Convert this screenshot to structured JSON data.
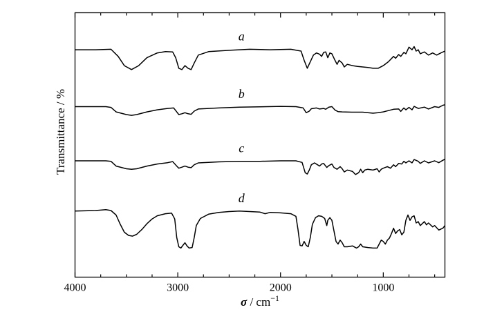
{
  "chart_data": {
    "type": "line",
    "xlabel_symbol": "σ",
    "xlabel_unit": " / cm",
    "xlabel_sup": "−1",
    "ylabel": "Transmittance / %",
    "xlim": [
      4000,
      400
    ],
    "x_reversed": true,
    "ylim": [
      0,
      1
    ],
    "y_ticks_labeled": false,
    "grid": false,
    "x_ticks": [
      4000,
      3000,
      2000,
      1000
    ],
    "x_tick_labels": [
      "4000",
      "3000",
      "2000",
      "1000"
    ],
    "series": [
      {
        "name": "a",
        "points": [
          [
            4000,
            0.86
          ],
          [
            3800,
            0.86
          ],
          [
            3650,
            0.862
          ],
          [
            3580,
            0.835
          ],
          [
            3520,
            0.8
          ],
          [
            3450,
            0.785
          ],
          [
            3380,
            0.8
          ],
          [
            3300,
            0.83
          ],
          [
            3200,
            0.848
          ],
          [
            3120,
            0.853
          ],
          [
            3050,
            0.852
          ],
          [
            3020,
            0.83
          ],
          [
            2990,
            0.79
          ],
          [
            2960,
            0.785
          ],
          [
            2930,
            0.8
          ],
          [
            2900,
            0.79
          ],
          [
            2870,
            0.785
          ],
          [
            2840,
            0.81
          ],
          [
            2800,
            0.84
          ],
          [
            2700,
            0.853
          ],
          [
            2500,
            0.858
          ],
          [
            2300,
            0.862
          ],
          [
            2100,
            0.86
          ],
          [
            1900,
            0.862
          ],
          [
            1800,
            0.855
          ],
          [
            1770,
            0.82
          ],
          [
            1740,
            0.79
          ],
          [
            1710,
            0.815
          ],
          [
            1680,
            0.84
          ],
          [
            1650,
            0.848
          ],
          [
            1620,
            0.843
          ],
          [
            1600,
            0.835
          ],
          [
            1580,
            0.85
          ],
          [
            1560,
            0.852
          ],
          [
            1540,
            0.83
          ],
          [
            1520,
            0.848
          ],
          [
            1500,
            0.845
          ],
          [
            1470,
            0.82
          ],
          [
            1450,
            0.805
          ],
          [
            1430,
            0.82
          ],
          [
            1400,
            0.81
          ],
          [
            1380,
            0.795
          ],
          [
            1350,
            0.805
          ],
          [
            1300,
            0.8
          ],
          [
            1250,
            0.797
          ],
          [
            1200,
            0.795
          ],
          [
            1150,
            0.793
          ],
          [
            1100,
            0.79
          ],
          [
            1050,
            0.79
          ],
          [
            1000,
            0.8
          ],
          [
            950,
            0.815
          ],
          [
            900,
            0.835
          ],
          [
            880,
            0.828
          ],
          [
            850,
            0.842
          ],
          [
            830,
            0.835
          ],
          [
            800,
            0.85
          ],
          [
            780,
            0.845
          ],
          [
            750,
            0.87
          ],
          [
            720,
            0.86
          ],
          [
            700,
            0.872
          ],
          [
            680,
            0.855
          ],
          [
            660,
            0.86
          ],
          [
            640,
            0.845
          ],
          [
            600,
            0.852
          ],
          [
            560,
            0.84
          ],
          [
            520,
            0.848
          ],
          [
            480,
            0.84
          ],
          [
            440,
            0.848
          ],
          [
            400,
            0.855
          ]
        ]
      },
      {
        "name": "b",
        "points": [
          [
            4000,
            0.645
          ],
          [
            3700,
            0.645
          ],
          [
            3650,
            0.642
          ],
          [
            3600,
            0.625
          ],
          [
            3500,
            0.615
          ],
          [
            3450,
            0.612
          ],
          [
            3400,
            0.615
          ],
          [
            3300,
            0.625
          ],
          [
            3200,
            0.633
          ],
          [
            3100,
            0.638
          ],
          [
            3040,
            0.64
          ],
          [
            3010,
            0.625
          ],
          [
            2990,
            0.615
          ],
          [
            2960,
            0.618
          ],
          [
            2930,
            0.622
          ],
          [
            2900,
            0.618
          ],
          [
            2870,
            0.616
          ],
          [
            2840,
            0.628
          ],
          [
            2800,
            0.636
          ],
          [
            2600,
            0.64
          ],
          [
            2400,
            0.643
          ],
          [
            2200,
            0.644
          ],
          [
            2000,
            0.646
          ],
          [
            1850,
            0.645
          ],
          [
            1780,
            0.64
          ],
          [
            1750,
            0.622
          ],
          [
            1720,
            0.628
          ],
          [
            1700,
            0.637
          ],
          [
            1650,
            0.64
          ],
          [
            1620,
            0.636
          ],
          [
            1580,
            0.638
          ],
          [
            1560,
            0.635
          ],
          [
            1530,
            0.643
          ],
          [
            1500,
            0.645
          ],
          [
            1470,
            0.632
          ],
          [
            1440,
            0.626
          ],
          [
            1400,
            0.625
          ],
          [
            1300,
            0.624
          ],
          [
            1200,
            0.624
          ],
          [
            1150,
            0.622
          ],
          [
            1100,
            0.62
          ],
          [
            1050,
            0.622
          ],
          [
            1000,
            0.625
          ],
          [
            950,
            0.63
          ],
          [
            900,
            0.635
          ],
          [
            850,
            0.636
          ],
          [
            830,
            0.627
          ],
          [
            800,
            0.64
          ],
          [
            780,
            0.633
          ],
          [
            750,
            0.642
          ],
          [
            720,
            0.633
          ],
          [
            700,
            0.646
          ],
          [
            660,
            0.638
          ],
          [
            600,
            0.643
          ],
          [
            560,
            0.636
          ],
          [
            500,
            0.645
          ],
          [
            460,
            0.642
          ],
          [
            420,
            0.65
          ],
          [
            400,
            0.652
          ]
        ]
      },
      {
        "name": "c",
        "points": [
          [
            4000,
            0.44
          ],
          [
            3700,
            0.44
          ],
          [
            3650,
            0.438
          ],
          [
            3600,
            0.42
          ],
          [
            3500,
            0.41
          ],
          [
            3450,
            0.408
          ],
          [
            3400,
            0.41
          ],
          [
            3300,
            0.42
          ],
          [
            3200,
            0.428
          ],
          [
            3100,
            0.433
          ],
          [
            3050,
            0.437
          ],
          [
            3010,
            0.42
          ],
          [
            2990,
            0.412
          ],
          [
            2960,
            0.416
          ],
          [
            2930,
            0.42
          ],
          [
            2900,
            0.416
          ],
          [
            2870,
            0.414
          ],
          [
            2840,
            0.425
          ],
          [
            2800,
            0.432
          ],
          [
            2600,
            0.436
          ],
          [
            2400,
            0.438
          ],
          [
            2200,
            0.438
          ],
          [
            2000,
            0.44
          ],
          [
            1850,
            0.44
          ],
          [
            1790,
            0.434
          ],
          [
            1760,
            0.395
          ],
          [
            1740,
            0.39
          ],
          [
            1720,
            0.405
          ],
          [
            1700,
            0.425
          ],
          [
            1670,
            0.432
          ],
          [
            1640,
            0.425
          ],
          [
            1620,
            0.42
          ],
          [
            1600,
            0.428
          ],
          [
            1580,
            0.43
          ],
          [
            1550,
            0.415
          ],
          [
            1530,
            0.422
          ],
          [
            1500,
            0.428
          ],
          [
            1480,
            0.415
          ],
          [
            1450,
            0.408
          ],
          [
            1420,
            0.418
          ],
          [
            1400,
            0.41
          ],
          [
            1380,
            0.398
          ],
          [
            1350,
            0.405
          ],
          [
            1300,
            0.4
          ],
          [
            1270,
            0.388
          ],
          [
            1240,
            0.395
          ],
          [
            1220,
            0.408
          ],
          [
            1200,
            0.395
          ],
          [
            1180,
            0.405
          ],
          [
            1150,
            0.408
          ],
          [
            1100,
            0.405
          ],
          [
            1060,
            0.41
          ],
          [
            1040,
            0.398
          ],
          [
            1020,
            0.408
          ],
          [
            1000,
            0.412
          ],
          [
            960,
            0.418
          ],
          [
            930,
            0.412
          ],
          [
            900,
            0.425
          ],
          [
            880,
            0.418
          ],
          [
            850,
            0.43
          ],
          [
            820,
            0.428
          ],
          [
            800,
            0.438
          ],
          [
            780,
            0.432
          ],
          [
            750,
            0.44
          ],
          [
            720,
            0.432
          ],
          [
            700,
            0.445
          ],
          [
            660,
            0.438
          ],
          [
            640,
            0.43
          ],
          [
            600,
            0.44
          ],
          [
            560,
            0.432
          ],
          [
            500,
            0.44
          ],
          [
            460,
            0.433
          ],
          [
            420,
            0.442
          ],
          [
            400,
            0.446
          ]
        ]
      },
      {
        "name": "d",
        "points": [
          [
            4000,
            0.25
          ],
          [
            3800,
            0.252
          ],
          [
            3700,
            0.255
          ],
          [
            3650,
            0.252
          ],
          [
            3600,
            0.235
          ],
          [
            3560,
            0.2
          ],
          [
            3520,
            0.17
          ],
          [
            3480,
            0.158
          ],
          [
            3440,
            0.155
          ],
          [
            3400,
            0.162
          ],
          [
            3350,
            0.18
          ],
          [
            3300,
            0.202
          ],
          [
            3250,
            0.22
          ],
          [
            3200,
            0.232
          ],
          [
            3120,
            0.24
          ],
          [
            3060,
            0.242
          ],
          [
            3030,
            0.22
          ],
          [
            3010,
            0.15
          ],
          [
            2990,
            0.115
          ],
          [
            2970,
            0.11
          ],
          [
            2950,
            0.12
          ],
          [
            2930,
            0.13
          ],
          [
            2910,
            0.118
          ],
          [
            2890,
            0.11
          ],
          [
            2860,
            0.112
          ],
          [
            2840,
            0.15
          ],
          [
            2820,
            0.195
          ],
          [
            2780,
            0.222
          ],
          [
            2700,
            0.238
          ],
          [
            2600,
            0.245
          ],
          [
            2500,
            0.248
          ],
          [
            2400,
            0.25
          ],
          [
            2300,
            0.248
          ],
          [
            2200,
            0.246
          ],
          [
            2150,
            0.24
          ],
          [
            2100,
            0.245
          ],
          [
            2000,
            0.243
          ],
          [
            1900,
            0.24
          ],
          [
            1850,
            0.23
          ],
          [
            1830,
            0.18
          ],
          [
            1810,
            0.12
          ],
          [
            1790,
            0.118
          ],
          [
            1770,
            0.135
          ],
          [
            1750,
            0.12
          ],
          [
            1730,
            0.115
          ],
          [
            1710,
            0.15
          ],
          [
            1690,
            0.2
          ],
          [
            1660,
            0.225
          ],
          [
            1630,
            0.232
          ],
          [
            1600,
            0.23
          ],
          [
            1570,
            0.222
          ],
          [
            1550,
            0.195
          ],
          [
            1540,
            0.215
          ],
          [
            1520,
            0.225
          ],
          [
            1500,
            0.215
          ],
          [
            1480,
            0.175
          ],
          [
            1460,
            0.135
          ],
          [
            1440,
            0.125
          ],
          [
            1420,
            0.14
          ],
          [
            1400,
            0.13
          ],
          [
            1380,
            0.115
          ],
          [
            1350,
            0.115
          ],
          [
            1300,
            0.118
          ],
          [
            1260,
            0.11
          ],
          [
            1240,
            0.115
          ],
          [
            1220,
            0.125
          ],
          [
            1200,
            0.115
          ],
          [
            1150,
            0.112
          ],
          [
            1100,
            0.11
          ],
          [
            1060,
            0.11
          ],
          [
            1040,
            0.125
          ],
          [
            1020,
            0.14
          ],
          [
            1000,
            0.135
          ],
          [
            980,
            0.125
          ],
          [
            960,
            0.14
          ],
          [
            940,
            0.148
          ],
          [
            920,
            0.165
          ],
          [
            900,
            0.185
          ],
          [
            880,
            0.165
          ],
          [
            860,
            0.175
          ],
          [
            840,
            0.18
          ],
          [
            820,
            0.16
          ],
          [
            800,
            0.17
          ],
          [
            780,
            0.215
          ],
          [
            760,
            0.235
          ],
          [
            740,
            0.215
          ],
          [
            720,
            0.228
          ],
          [
            700,
            0.232
          ],
          [
            680,
            0.205
          ],
          [
            660,
            0.21
          ],
          [
            640,
            0.195
          ],
          [
            600,
            0.21
          ],
          [
            580,
            0.198
          ],
          [
            560,
            0.205
          ],
          [
            520,
            0.19
          ],
          [
            500,
            0.195
          ],
          [
            460,
            0.178
          ],
          [
            420,
            0.185
          ],
          [
            400,
            0.195
          ]
        ]
      }
    ]
  }
}
